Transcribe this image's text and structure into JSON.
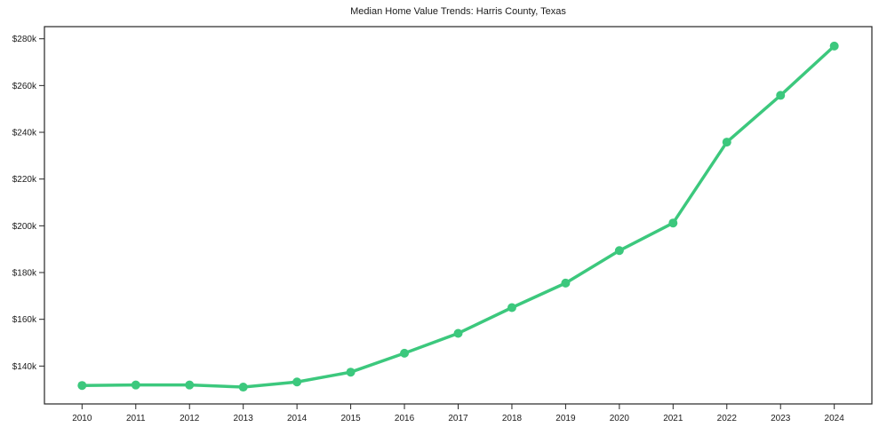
{
  "page": {
    "background_color": "#ffffff"
  },
  "chart_data": {
    "type": "line",
    "title": "Median Home Value Trends: Harris County, Texas",
    "x": [
      2010,
      2011,
      2012,
      2013,
      2014,
      2015,
      2016,
      2017,
      2018,
      2019,
      2020,
      2021,
      2022,
      2023,
      2024
    ],
    "x_tick_labels": [
      "2010",
      "2011",
      "2012",
      "2013",
      "2014",
      "2015",
      "2016",
      "2017",
      "2018",
      "2019",
      "2020",
      "2021",
      "2022",
      "2023",
      "2024"
    ],
    "series": [
      {
        "name": "Median Home Value",
        "values": [
          131700,
          131900,
          131900,
          131000,
          133200,
          137400,
          145500,
          154000,
          165000,
          175500,
          189400,
          201200,
          235800,
          255800,
          276900
        ]
      }
    ],
    "y_tick_values": [
      140000,
      160000,
      180000,
      200000,
      220000,
      240000,
      260000,
      280000
    ],
    "y_tick_labels": [
      "$140k",
      "$160k",
      "$180k",
      "$200k",
      "$220k",
      "$240k",
      "$260k",
      "$280k"
    ],
    "xlim": [
      2009.3,
      2024.7
    ],
    "ylim": [
      123800,
      285200
    ],
    "xlabel": "",
    "ylabel": "",
    "grid": false,
    "legend_position": "none",
    "line_color": "#3cc87d",
    "marker": "circle",
    "marker_radius": 5,
    "line_width": 3.5,
    "axis_color": "#262626",
    "text_color": "#1a1a1a"
  }
}
